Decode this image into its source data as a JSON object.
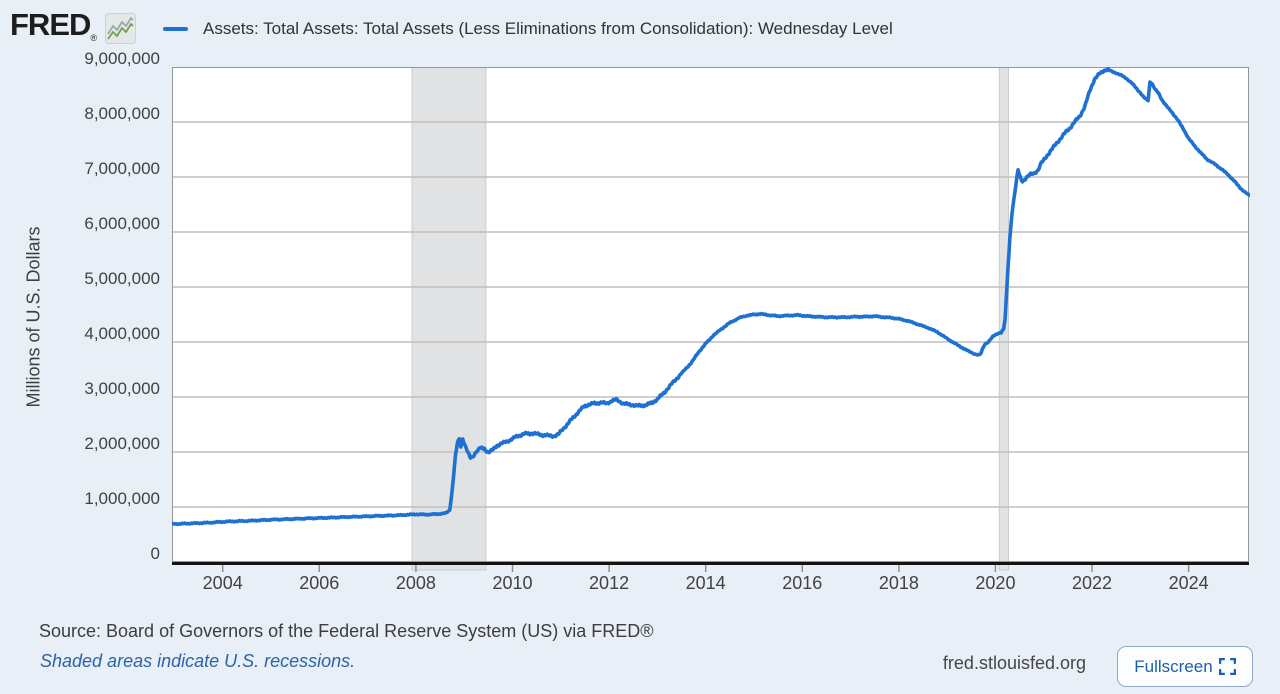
{
  "header": {
    "logo_text": "FRED",
    "logo_mark": "®",
    "legend": {
      "series_label": "Assets: Total Assets: Total Assets (Less Eliminations from Consolidation): Wednesday Level"
    }
  },
  "colors": {
    "background": "#e8eff7",
    "plot_background": "#ffffff",
    "line": "#1e70d2",
    "grid": "#bfbfbf",
    "plot_border": "#969696",
    "axis": "#141414",
    "tick": "#8f8f8f",
    "recession_band": "#e1e2e3",
    "recession_band_edge": "#cccccc",
    "label_text": "#424242",
    "link_blue": "#2a63a8",
    "button_blue": "#1d5fa9"
  },
  "chart_data": {
    "type": "line",
    "title": "Assets: Total Assets: Total Assets (Less Eliminations from Consolidation): Wednesday Level",
    "xlabel": "",
    "ylabel": "Millions of U.S. Dollars",
    "grid": "horizontal",
    "legend_position": "top-left",
    "x_range": [
      2002.95,
      2025.25
    ],
    "y_range": [
      0,
      9000000
    ],
    "x_ticks": [
      2004,
      2006,
      2008,
      2010,
      2012,
      2014,
      2016,
      2018,
      2020,
      2022,
      2024
    ],
    "y_ticks": [
      0,
      1000000,
      2000000,
      3000000,
      4000000,
      5000000,
      6000000,
      7000000,
      8000000,
      9000000
    ],
    "recession_bands": [
      [
        2007.92,
        2009.45
      ],
      [
        2020.08,
        2020.27
      ]
    ],
    "series": [
      {
        "name": "Assets: Total Assets: Total Assets (Less Eliminations from Consolidation): Wednesday Level",
        "units": "Millions of U.S. Dollars",
        "points": [
          [
            2002.95,
            690000
          ],
          [
            2003.2,
            697000
          ],
          [
            2003.5,
            707000
          ],
          [
            2003.8,
            719000
          ],
          [
            2004.1,
            736000
          ],
          [
            2004.4,
            744000
          ],
          [
            2004.7,
            755000
          ],
          [
            2005.0,
            769000
          ],
          [
            2005.3,
            778000
          ],
          [
            2005.6,
            787000
          ],
          [
            2005.9,
            797000
          ],
          [
            2006.2,
            805000
          ],
          [
            2006.5,
            816000
          ],
          [
            2006.8,
            825000
          ],
          [
            2007.1,
            834000
          ],
          [
            2007.4,
            843000
          ],
          [
            2007.7,
            852000
          ],
          [
            2008.0,
            868000
          ],
          [
            2008.2,
            862000
          ],
          [
            2008.45,
            872000
          ],
          [
            2008.62,
            888000
          ],
          [
            2008.7,
            940000
          ],
          [
            2008.74,
            1210000
          ],
          [
            2008.78,
            1560000
          ],
          [
            2008.82,
            1950000
          ],
          [
            2008.86,
            2160000
          ],
          [
            2008.9,
            2240000
          ],
          [
            2008.93,
            2090000
          ],
          [
            2008.97,
            2250000
          ],
          [
            2009.02,
            2120000
          ],
          [
            2009.08,
            1980000
          ],
          [
            2009.13,
            1890000
          ],
          [
            2009.18,
            1920000
          ],
          [
            2009.25,
            2010000
          ],
          [
            2009.33,
            2070000
          ],
          [
            2009.42,
            2060000
          ],
          [
            2009.5,
            1990000
          ],
          [
            2009.58,
            2030000
          ],
          [
            2009.68,
            2120000
          ],
          [
            2009.8,
            2160000
          ],
          [
            2009.9,
            2200000
          ],
          [
            2010.0,
            2240000
          ],
          [
            2010.1,
            2290000
          ],
          [
            2010.25,
            2330000
          ],
          [
            2010.4,
            2340000
          ],
          [
            2010.55,
            2320000
          ],
          [
            2010.7,
            2300000
          ],
          [
            2010.85,
            2290000
          ],
          [
            2010.95,
            2320000
          ],
          [
            2011.1,
            2470000
          ],
          [
            2011.25,
            2620000
          ],
          [
            2011.4,
            2760000
          ],
          [
            2011.5,
            2840000
          ],
          [
            2011.6,
            2870000
          ],
          [
            2011.75,
            2890000
          ],
          [
            2011.85,
            2900000
          ],
          [
            2011.95,
            2880000
          ],
          [
            2012.05,
            2930000
          ],
          [
            2012.15,
            2950000
          ],
          [
            2012.3,
            2880000
          ],
          [
            2012.45,
            2860000
          ],
          [
            2012.6,
            2840000
          ],
          [
            2012.75,
            2850000
          ],
          [
            2012.9,
            2900000
          ],
          [
            2013.0,
            2960000
          ],
          [
            2013.15,
            3090000
          ],
          [
            2013.3,
            3240000
          ],
          [
            2013.5,
            3430000
          ],
          [
            2013.7,
            3620000
          ],
          [
            2013.85,
            3810000
          ],
          [
            2014.0,
            3970000
          ],
          [
            2014.15,
            4110000
          ],
          [
            2014.3,
            4220000
          ],
          [
            2014.5,
            4350000
          ],
          [
            2014.7,
            4440000
          ],
          [
            2014.85,
            4480000
          ],
          [
            2015.0,
            4500000
          ],
          [
            2015.15,
            4510000
          ],
          [
            2015.3,
            4490000
          ],
          [
            2015.5,
            4470000
          ],
          [
            2015.7,
            4480000
          ],
          [
            2015.9,
            4490000
          ],
          [
            2016.1,
            4470000
          ],
          [
            2016.3,
            4460000
          ],
          [
            2016.5,
            4450000
          ],
          [
            2016.7,
            4450000
          ],
          [
            2016.9,
            4450000
          ],
          [
            2017.1,
            4460000
          ],
          [
            2017.3,
            4460000
          ],
          [
            2017.5,
            4470000
          ],
          [
            2017.7,
            4450000
          ],
          [
            2017.85,
            4440000
          ],
          [
            2018.0,
            4420000
          ],
          [
            2018.2,
            4380000
          ],
          [
            2018.4,
            4320000
          ],
          [
            2018.6,
            4260000
          ],
          [
            2018.8,
            4180000
          ],
          [
            2019.0,
            4060000
          ],
          [
            2019.15,
            3980000
          ],
          [
            2019.3,
            3900000
          ],
          [
            2019.45,
            3830000
          ],
          [
            2019.58,
            3780000
          ],
          [
            2019.65,
            3760000
          ],
          [
            2019.7,
            3790000
          ],
          [
            2019.73,
            3870000
          ],
          [
            2019.78,
            3960000
          ],
          [
            2019.85,
            4000000
          ],
          [
            2019.95,
            4100000
          ],
          [
            2020.05,
            4160000
          ],
          [
            2020.12,
            4170000
          ],
          [
            2020.17,
            4240000
          ],
          [
            2020.2,
            4420000
          ],
          [
            2020.23,
            4900000
          ],
          [
            2020.26,
            5350000
          ],
          [
            2020.3,
            5900000
          ],
          [
            2020.34,
            6310000
          ],
          [
            2020.38,
            6590000
          ],
          [
            2020.42,
            6830000
          ],
          [
            2020.45,
            7040000
          ],
          [
            2020.47,
            7130000
          ],
          [
            2020.49,
            7060000
          ],
          [
            2020.52,
            6980000
          ],
          [
            2020.56,
            6930000
          ],
          [
            2020.6,
            6950000
          ],
          [
            2020.66,
            7000000
          ],
          [
            2020.73,
            7050000
          ],
          [
            2020.8,
            7070000
          ],
          [
            2020.88,
            7120000
          ],
          [
            2020.95,
            7250000
          ],
          [
            2021.05,
            7370000
          ],
          [
            2021.15,
            7480000
          ],
          [
            2021.25,
            7600000
          ],
          [
            2021.35,
            7700000
          ],
          [
            2021.45,
            7810000
          ],
          [
            2021.55,
            7900000
          ],
          [
            2021.65,
            8010000
          ],
          [
            2021.75,
            8110000
          ],
          [
            2021.85,
            8280000
          ],
          [
            2021.95,
            8560000
          ],
          [
            2022.05,
            8780000
          ],
          [
            2022.15,
            8870000
          ],
          [
            2022.25,
            8940000
          ],
          [
            2022.32,
            8960000
          ],
          [
            2022.4,
            8920000
          ],
          [
            2022.5,
            8890000
          ],
          [
            2022.6,
            8850000
          ],
          [
            2022.7,
            8800000
          ],
          [
            2022.82,
            8710000
          ],
          [
            2022.92,
            8610000
          ],
          [
            2023.0,
            8530000
          ],
          [
            2023.08,
            8440000
          ],
          [
            2023.16,
            8390000
          ],
          [
            2023.2,
            8730000
          ],
          [
            2023.24,
            8700000
          ],
          [
            2023.3,
            8600000
          ],
          [
            2023.38,
            8520000
          ],
          [
            2023.45,
            8400000
          ],
          [
            2023.55,
            8280000
          ],
          [
            2023.65,
            8180000
          ],
          [
            2023.78,
            8030000
          ],
          [
            2023.9,
            7860000
          ],
          [
            2024.0,
            7700000
          ],
          [
            2024.12,
            7570000
          ],
          [
            2024.25,
            7440000
          ],
          [
            2024.4,
            7310000
          ],
          [
            2024.55,
            7230000
          ],
          [
            2024.7,
            7130000
          ],
          [
            2024.82,
            7040000
          ],
          [
            2024.92,
            6950000
          ],
          [
            2025.0,
            6870000
          ],
          [
            2025.08,
            6790000
          ],
          [
            2025.16,
            6730000
          ],
          [
            2025.25,
            6670000
          ]
        ]
      }
    ]
  },
  "footer": {
    "source_text": "Source: Board of Governors of the Federal Reserve System (US) via FRED®",
    "recession_note": "Shaded areas indicate U.S. recessions.",
    "site_url": "fred.stlouisfed.org",
    "fullscreen_label": "Fullscreen"
  }
}
